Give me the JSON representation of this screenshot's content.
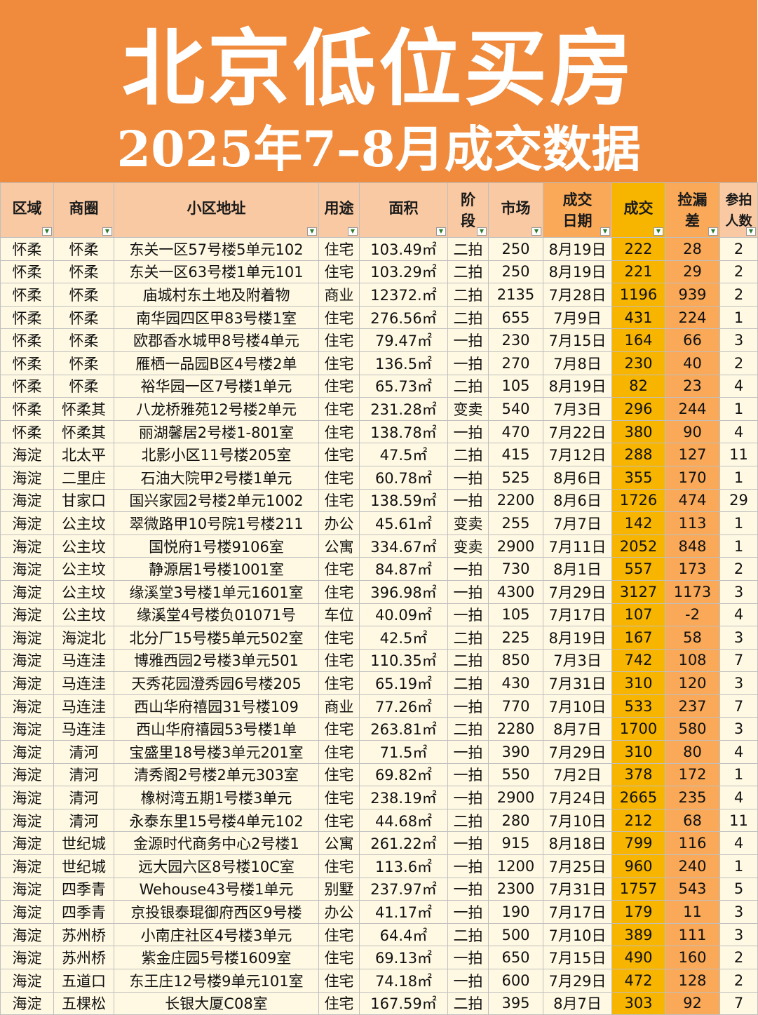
{
  "title": "北京低位买房",
  "subtitle": "2025年7–8月成交数据",
  "columns": [
    {
      "key": "region",
      "label": "区域"
    },
    {
      "key": "zone",
      "label": "商圈"
    },
    {
      "key": "address",
      "label": "小区地址"
    },
    {
      "key": "usage",
      "label": "用途"
    },
    {
      "key": "area",
      "label": "面积"
    },
    {
      "key": "stage",
      "label": "阶段"
    },
    {
      "key": "market",
      "label": "市场"
    },
    {
      "key": "date",
      "label": "成交日期"
    },
    {
      "key": "deal",
      "label": "成交"
    },
    {
      "key": "gap",
      "label": "捡漏差"
    },
    {
      "key": "bidders",
      "label": "参拍人数"
    }
  ],
  "rows": [
    [
      "怀柔",
      "怀柔",
      "东关一区57号楼5单元102",
      "住宅",
      "103.49㎡",
      "二拍",
      "250",
      "8月19日",
      "222",
      "28",
      "2"
    ],
    [
      "怀柔",
      "怀柔",
      "东关一区63号楼1单元101",
      "住宅",
      "103.29㎡",
      "二拍",
      "250",
      "8月19日",
      "221",
      "29",
      "2"
    ],
    [
      "怀柔",
      "怀柔",
      "庙城村东土地及附着物",
      "商业",
      "12372.㎡",
      "二拍",
      "2135",
      "7月28日",
      "1196",
      "939",
      "2"
    ],
    [
      "怀柔",
      "怀柔",
      "南华园四区甲83号楼1室",
      "住宅",
      "276.56㎡",
      "二拍",
      "655",
      "7月9日",
      "431",
      "224",
      "1"
    ],
    [
      "怀柔",
      "怀柔",
      "欧郡香水城甲8号楼4单元",
      "住宅",
      "79.47㎡",
      "一拍",
      "230",
      "7月15日",
      "164",
      "66",
      "3"
    ],
    [
      "怀柔",
      "怀柔",
      "雁栖一品园B区4号楼2单",
      "住宅",
      "136.5㎡",
      "一拍",
      "270",
      "7月8日",
      "230",
      "40",
      "2"
    ],
    [
      "怀柔",
      "怀柔",
      "裕华园一区7号楼1单元",
      "住宅",
      "65.73㎡",
      "二拍",
      "105",
      "8月19日",
      "82",
      "23",
      "4"
    ],
    [
      "怀柔",
      "怀柔其",
      "八龙桥雅苑12号楼2单元",
      "住宅",
      "231.28㎡",
      "变卖",
      "540",
      "7月3日",
      "296",
      "244",
      "1"
    ],
    [
      "怀柔",
      "怀柔其",
      "丽湖馨居2号楼1-801室",
      "住宅",
      "138.78㎡",
      "一拍",
      "470",
      "7月22日",
      "380",
      "90",
      "4"
    ],
    [
      "海淀",
      "北太平",
      "北影小区11号楼205室",
      "住宅",
      "47.5㎡",
      "二拍",
      "415",
      "7月12日",
      "288",
      "127",
      "11"
    ],
    [
      "海淀",
      "二里庄",
      "石油大院甲2号楼1单元",
      "住宅",
      "60.78㎡",
      "一拍",
      "525",
      "8月6日",
      "355",
      "170",
      "1"
    ],
    [
      "海淀",
      "甘家口",
      "国兴家园2号楼2单元1002",
      "住宅",
      "138.59㎡",
      "一拍",
      "2200",
      "8月6日",
      "1726",
      "474",
      "29"
    ],
    [
      "海淀",
      "公主坟",
      "翠微路甲10号院1号楼211",
      "办公",
      "45.61㎡",
      "变卖",
      "255",
      "7月7日",
      "142",
      "113",
      "1"
    ],
    [
      "海淀",
      "公主坟",
      "国悦府1号楼9106室",
      "公寓",
      "334.67㎡",
      "变卖",
      "2900",
      "7月11日",
      "2052",
      "848",
      "1"
    ],
    [
      "海淀",
      "公主坟",
      "静源居1号楼1001室",
      "住宅",
      "84.87㎡",
      "一拍",
      "730",
      "8月1日",
      "557",
      "173",
      "2"
    ],
    [
      "海淀",
      "公主坟",
      "缘溪堂3号楼1单元1601室",
      "住宅",
      "396.98㎡",
      "一拍",
      "4300",
      "7月29日",
      "3127",
      "1173",
      "3"
    ],
    [
      "海淀",
      "公主坟",
      "缘溪堂4号楼负01071号",
      "车位",
      "40.09㎡",
      "一拍",
      "105",
      "7月17日",
      "107",
      "-2",
      "4"
    ],
    [
      "海淀",
      "海淀北",
      "北分厂15号楼5单元502室",
      "住宅",
      "42.5㎡",
      "二拍",
      "225",
      "8月19日",
      "167",
      "58",
      "3"
    ],
    [
      "海淀",
      "马连洼",
      "博雅西园2号楼3单元501",
      "住宅",
      "110.35㎡",
      "二拍",
      "850",
      "7月3日",
      "742",
      "108",
      "7"
    ],
    [
      "海淀",
      "马连洼",
      "天秀花园澄秀园6号楼205",
      "住宅",
      "65.19㎡",
      "二拍",
      "430",
      "7月31日",
      "310",
      "120",
      "3"
    ],
    [
      "海淀",
      "马连洼",
      "西山华府禧园31号楼109",
      "商业",
      "77.26㎡",
      "一拍",
      "770",
      "7月10日",
      "533",
      "237",
      "7"
    ],
    [
      "海淀",
      "马连洼",
      "西山华府禧园53号楼1单",
      "住宅",
      "263.81㎡",
      "二拍",
      "2280",
      "8月7日",
      "1700",
      "580",
      "3"
    ],
    [
      "海淀",
      "清河",
      "宝盛里18号楼3单元201室",
      "住宅",
      "71.5㎡",
      "一拍",
      "390",
      "7月29日",
      "310",
      "80",
      "4"
    ],
    [
      "海淀",
      "清河",
      "清秀阁2号楼2单元303室",
      "住宅",
      "69.82㎡",
      "一拍",
      "550",
      "7月2日",
      "378",
      "172",
      "1"
    ],
    [
      "海淀",
      "清河",
      "橡树湾五期1号楼3单元",
      "住宅",
      "238.19㎡",
      "一拍",
      "2900",
      "7月24日",
      "2665",
      "235",
      "4"
    ],
    [
      "海淀",
      "清河",
      "永泰东里15号楼4单元102",
      "住宅",
      "44.68㎡",
      "二拍",
      "280",
      "7月10日",
      "212",
      "68",
      "11"
    ],
    [
      "海淀",
      "世纪城",
      "金源时代商务中心2号楼1",
      "公寓",
      "261.22㎡",
      "一拍",
      "915",
      "8月18日",
      "799",
      "116",
      "4"
    ],
    [
      "海淀",
      "世纪城",
      "远大园六区8号楼10C室",
      "住宅",
      "113.6㎡",
      "一拍",
      "1200",
      "7月25日",
      "960",
      "240",
      "1"
    ],
    [
      "海淀",
      "四季青",
      "Wehouse43号楼1单元",
      "别墅",
      "237.97㎡",
      "一拍",
      "2300",
      "7月31日",
      "1757",
      "543",
      "5"
    ],
    [
      "海淀",
      "四季青",
      "京投银泰琨御府西区9号楼",
      "办公",
      "41.17㎡",
      "一拍",
      "190",
      "7月17日",
      "179",
      "11",
      "3"
    ],
    [
      "海淀",
      "苏州桥",
      "小南庄社区4号楼3单元",
      "住宅",
      "64.4㎡",
      "二拍",
      "500",
      "7月10日",
      "389",
      "111",
      "3"
    ],
    [
      "海淀",
      "苏州桥",
      "紫金庄园5号楼1609室",
      "住宅",
      "69.13㎡",
      "一拍",
      "650",
      "7月15日",
      "490",
      "160",
      "2"
    ],
    [
      "海淀",
      "五道口",
      "东王庄12号楼9单元101室",
      "住宅",
      "74.18㎡",
      "一拍",
      "600",
      "7月29日",
      "472",
      "128",
      "2"
    ],
    [
      "海淀",
      "五棵松",
      "长银大厦C08室",
      "住宅",
      "167.59㎡",
      "二拍",
      "395",
      "8月7日",
      "303",
      "92",
      "7"
    ]
  ]
}
